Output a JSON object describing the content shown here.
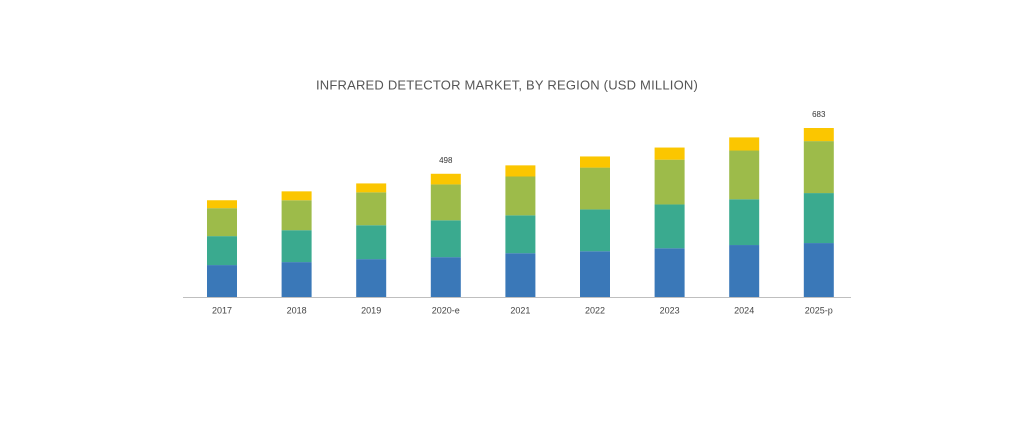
{
  "chart_data": {
    "type": "stacked_bar",
    "title": "INFRARED DETECTOR MARKET, BY REGION (USD MILLION)",
    "categories": [
      "2017",
      "2018",
      "2019",
      "2020-e",
      "2021",
      "2022",
      "2023",
      "2024",
      "2025-p"
    ],
    "series": [
      {
        "color": "#3a78b8",
        "values": [
          129,
          141,
          153,
          161,
          177,
          185,
          197,
          210,
          218
        ]
      },
      {
        "color": "#3aaa8f",
        "values": [
          117,
          129,
          137,
          149,
          153,
          169,
          177,
          185,
          202
        ]
      },
      {
        "color": "#9dbb4a",
        "values": [
          113,
          121,
          133,
          145,
          157,
          169,
          181,
          197,
          210
        ]
      },
      {
        "color": "#fbc600",
        "values": [
          32,
          36,
          36,
          43,
          45,
          45,
          49,
          53,
          53
        ]
      }
    ],
    "total_labels": [
      null,
      null,
      null,
      498,
      null,
      null,
      null,
      null,
      683
    ]
  }
}
